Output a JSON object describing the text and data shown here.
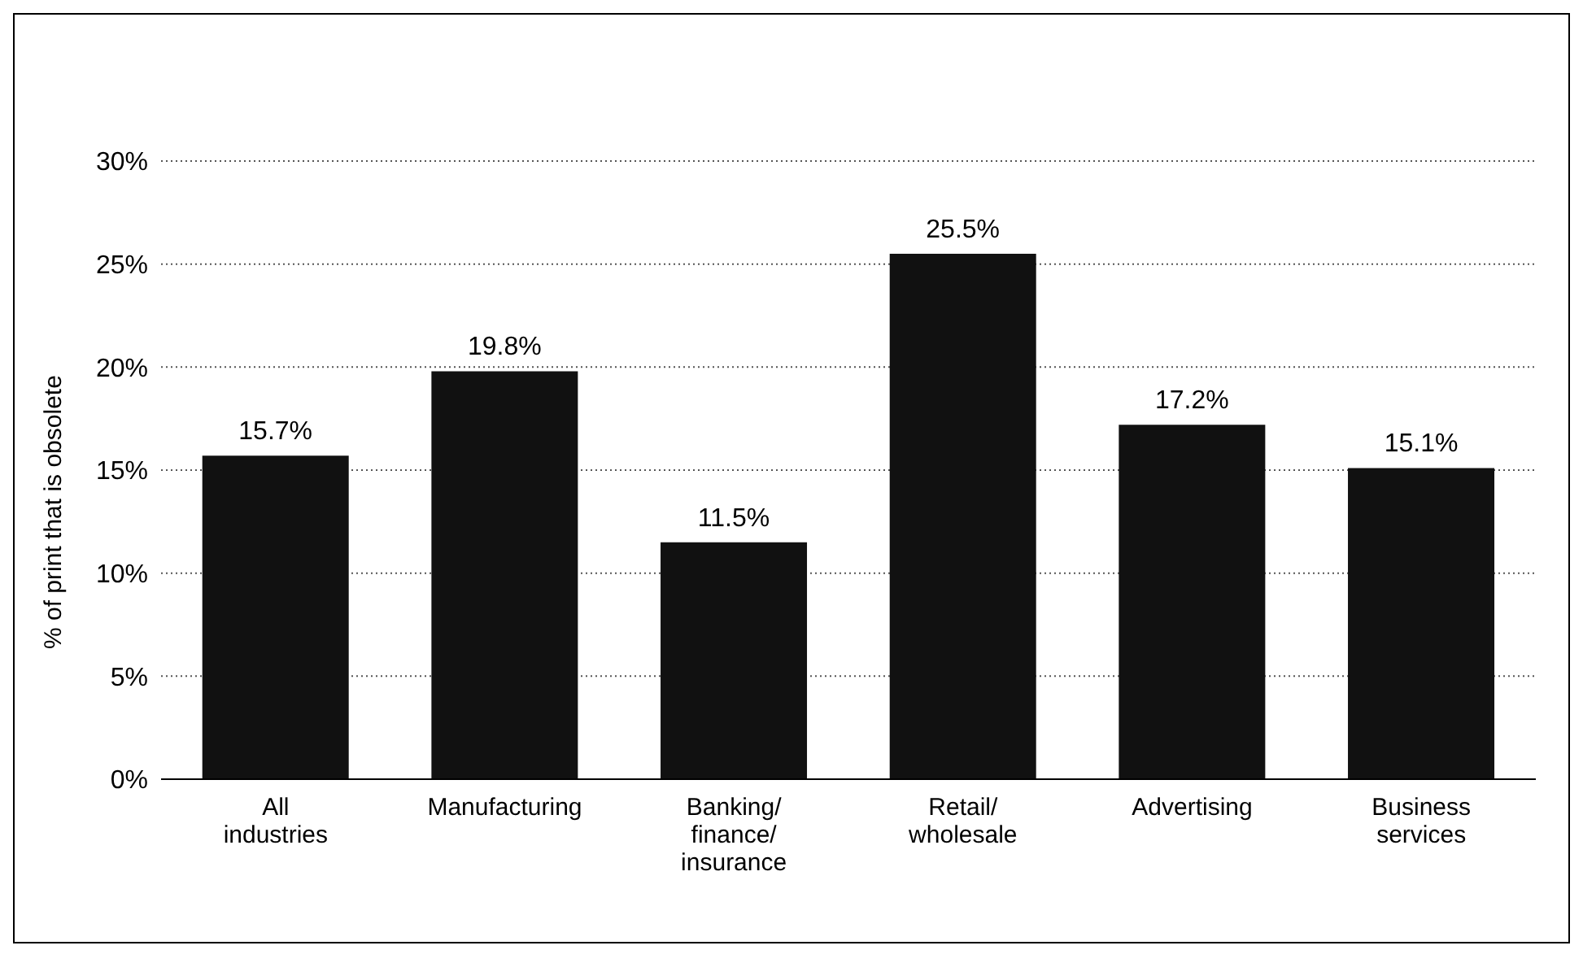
{
  "chart_data": {
    "type": "bar",
    "ylabel": "% of print that is obsolete",
    "categories": [
      "All industries",
      "Manufacturing",
      "Banking/finance/insurance",
      "Retail/wholesale",
      "Advertising",
      "Business services"
    ],
    "values": [
      15.7,
      19.8,
      11.5,
      25.5,
      17.2,
      15.1
    ],
    "value_labels": [
      "15.7%",
      "19.8%",
      "11.5%",
      "25.5%",
      "17.2%",
      "15.1%"
    ],
    "color": "#111111",
    "ylim": [
      0,
      30
    ],
    "yticks": [
      {
        "value": 0,
        "label": "0%"
      },
      {
        "value": 5,
        "label": "5%"
      },
      {
        "value": 10,
        "label": "10%"
      },
      {
        "value": 15,
        "label": "15%"
      },
      {
        "value": 20,
        "label": "20%"
      },
      {
        "value": 25,
        "label": "25%"
      },
      {
        "value": 30,
        "label": "30%"
      }
    ],
    "grid": "y"
  }
}
